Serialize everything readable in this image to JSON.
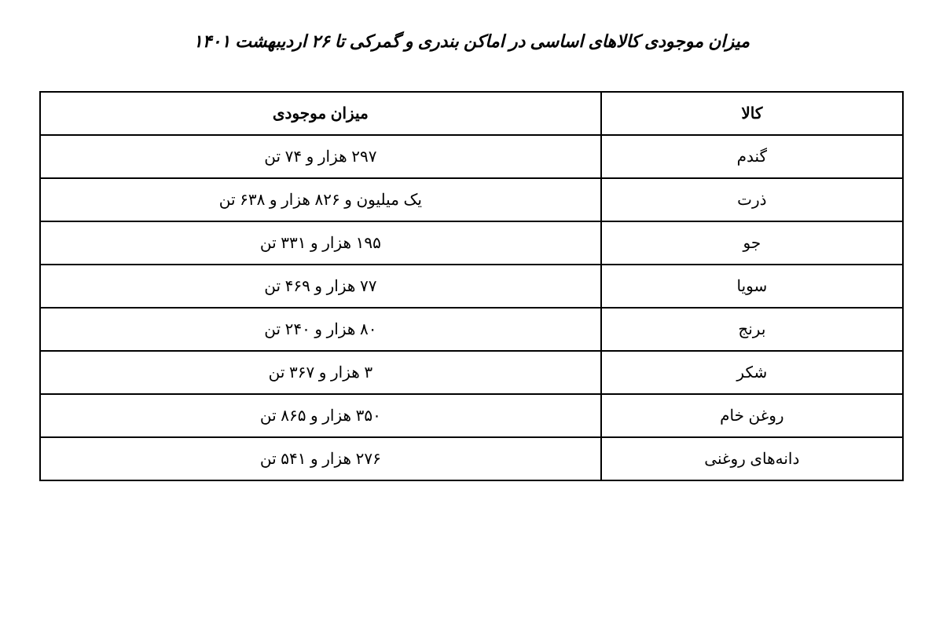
{
  "title": "میزان موجودی کالاهای اساسی در اماکن بندری و گمرکی تا ۲۶ اردیبهشت ۱۴۰۱",
  "table": {
    "type": "table",
    "columns": [
      {
        "key": "kala",
        "header": "کالا",
        "width": "35%",
        "align": "center"
      },
      {
        "key": "mizan",
        "header": "میزان موجودی",
        "width": "65%",
        "align": "center"
      }
    ],
    "rows": [
      {
        "kala": "گندم",
        "mizan": "۲۹۷ هزار و ۷۴ تن"
      },
      {
        "kala": "ذرت",
        "mizan": "یک میلیون و ۸۲۶ هزار و ۶۳۸ تن"
      },
      {
        "kala": "جو",
        "mizan": "۱۹۵ هزار و ۳۳۱ تن"
      },
      {
        "kala": "سویا",
        "mizan": "۷۷ هزار و ۴۶۹ تن"
      },
      {
        "kala": "برنج",
        "mizan": "۸۰ هزار و ۲۴۰ تن"
      },
      {
        "kala": "شکر",
        "mizan": "۳ هزار و ۳۶۷ تن"
      },
      {
        "kala": "روغن خام",
        "mizan": "۳۵۰ هزار و ۸۶۵ تن"
      },
      {
        "kala": "دانه‌های روغنی",
        "mizan": "۲۷۶ هزار و ۵۴۱ تن"
      }
    ],
    "border_color": "#000000",
    "background_color": "#ffffff",
    "text_color": "#000000",
    "header_fontsize": 20,
    "cell_fontsize": 20,
    "header_fontweight": "bold",
    "cell_padding": "14px 20px",
    "border_width": 2
  },
  "title_style": {
    "fontsize": 22,
    "fontweight": "bold",
    "fontstyle": "italic",
    "color": "#000000",
    "align": "center"
  }
}
